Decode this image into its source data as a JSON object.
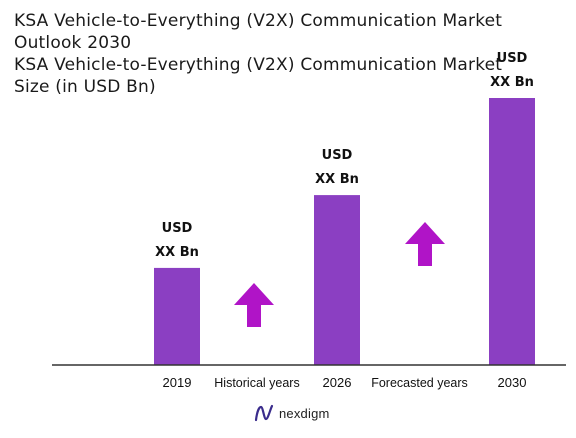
{
  "title": "KSA Vehicle-to-Everything (V2X) Communication Market Outlook 2030",
  "subtitle": "KSA Vehicle-to-Everything (V2X) Communication Market Size (in USD Bn)",
  "brand": "nexdigm",
  "colors": {
    "bar": "#8b3fc2",
    "arrow": "#b014c7",
    "axis": "#333333",
    "brand_logo": "#3a2c8c"
  },
  "chart_data": {
    "type": "bar",
    "categories": [
      "2019",
      "2026",
      "2030"
    ],
    "values": [
      20,
      35,
      55
    ],
    "value_labels": [
      [
        "USD",
        "XX Bn"
      ],
      [
        "USD",
        "XX Bn"
      ],
      [
        "USD",
        "XX Bn"
      ]
    ],
    "period_labels": [
      "Historical years",
      "Forecasted years"
    ],
    "title": "KSA Vehicle-to-Everything (V2X) Communication Market Size (in USD Bn)",
    "xlabel": "",
    "ylabel": "",
    "ylim": [
      0,
      55
    ],
    "grid": false,
    "legend": "none"
  }
}
